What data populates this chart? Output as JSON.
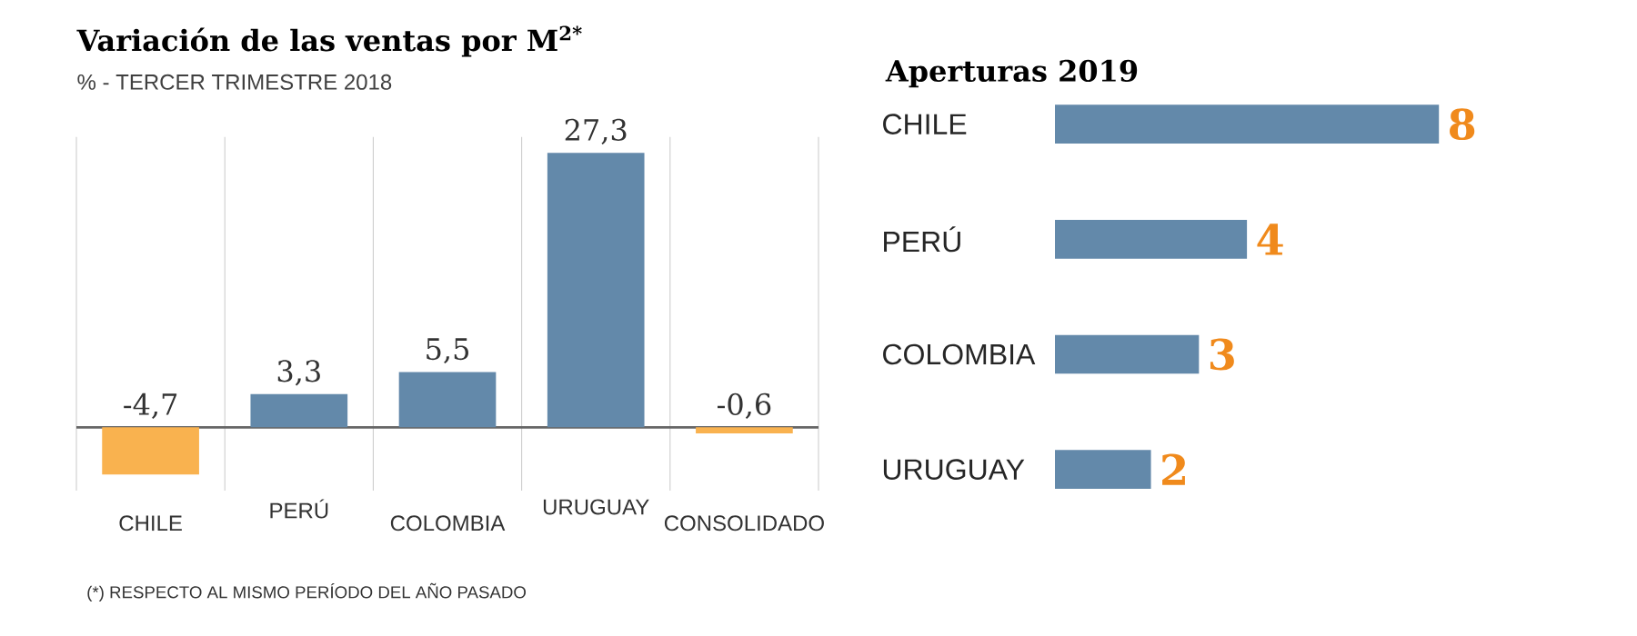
{
  "chart_data": [
    {
      "type": "bar",
      "title": "Variación de las ventas por M$^{2*}$",
      "subtitle": "% - TERCER TRIMESTRE 2018",
      "categories": [
        "CHILE",
        "PERÚ",
        "COLOMBIA",
        "URUGUAY",
        "CONSOLIDADO"
      ],
      "values": [
        -4.7,
        3.3,
        5.5,
        27.3,
        -0.6
      ],
      "colors": [
        "#f9b24f",
        "#6389aa",
        "#6389aa",
        "#6389aa",
        "#f9b24f"
      ],
      "value_labels": [
        "-4,7",
        "3,3",
        "5,5",
        "27,3",
        "-0,6"
      ],
      "grid": "x",
      "annotations": [
        "(*) RESPECTO AL MISMO PERÍODO DEL AÑO PASADO"
      ]
    },
    {
      "type": "bar",
      "orientation": "horizontal",
      "title": "Aperturas 2019",
      "categories": [
        "CHILE",
        "PERÚ",
        "COLOMBIA",
        "URUGUAY"
      ],
      "values": [
        8,
        4,
        3,
        2
      ],
      "color": "#6389aa",
      "data_labels": true
    }
  ]
}
